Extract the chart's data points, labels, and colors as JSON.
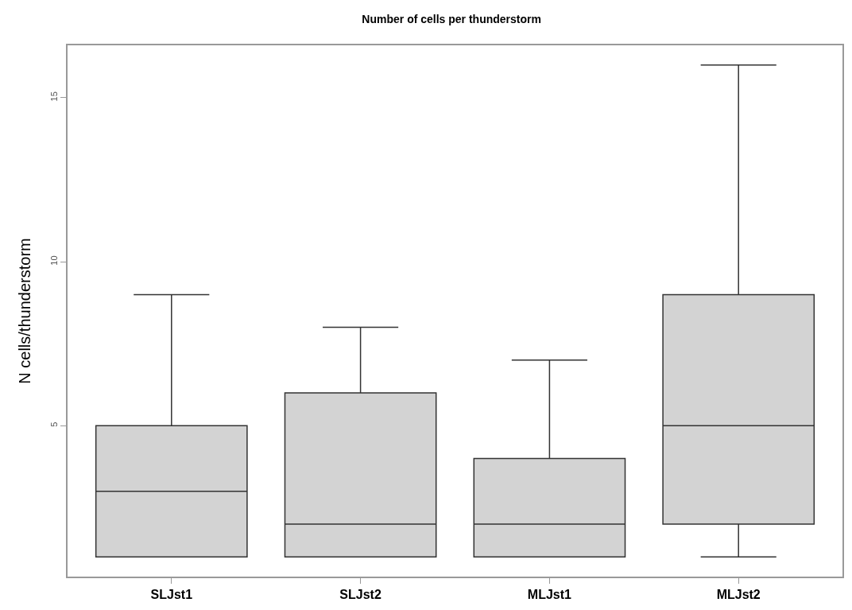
{
  "chart_data": {
    "type": "box",
    "title": "Number of cells per thunderstorm",
    "ylabel": "N cells/thunderstorm",
    "categories": [
      "SLJst1",
      "SLJst2",
      "MLJst1",
      "MLJst2"
    ],
    "boxes": [
      {
        "low": 1,
        "q1": 1,
        "median": 3,
        "q3": 5,
        "high": 9
      },
      {
        "low": 1,
        "q1": 1,
        "median": 2,
        "q3": 6,
        "high": 8
      },
      {
        "low": 1,
        "q1": 1,
        "median": 2,
        "q3": 4,
        "high": 7
      },
      {
        "low": 1,
        "q1": 2,
        "median": 5,
        "q3": 9,
        "high": 16
      }
    ],
    "color": "#d3d3d3",
    "ylim": [
      0.4,
      16.6
    ],
    "yticks": [
      5,
      10,
      15
    ],
    "grid": false
  }
}
